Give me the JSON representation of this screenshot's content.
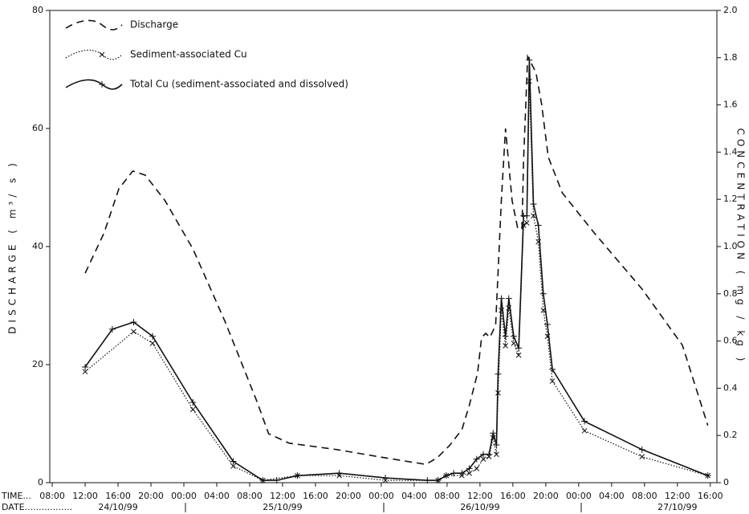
{
  "chart_data": {
    "type": "line",
    "y_axis_label": "DISCHARGE ( m³/ s )",
    "y2_axis_label": "CONCENTRATION ( mg / kg )",
    "time_label": "TIME...",
    "date_label": "DATE.................",
    "xlim": [
      7.7,
      88.8
    ],
    "xticks": [
      {
        "value": 8,
        "label": "08:00"
      },
      {
        "value": 12,
        "label": "12:00"
      },
      {
        "value": 16,
        "label": "16:00"
      },
      {
        "value": 20,
        "label": "20:00"
      },
      {
        "value": 24,
        "label": "00:00"
      },
      {
        "value": 28,
        "label": "04:00"
      },
      {
        "value": 32,
        "label": "08:00"
      },
      {
        "value": 36,
        "label": "12:00"
      },
      {
        "value": 40,
        "label": "16:00"
      },
      {
        "value": 44,
        "label": "20:00"
      },
      {
        "value": 48,
        "label": "00:00"
      },
      {
        "value": 52,
        "label": "04:00"
      },
      {
        "value": 56,
        "label": "08:00"
      },
      {
        "value": 60,
        "label": "12:00"
      },
      {
        "value": 64,
        "label": "16:00"
      },
      {
        "value": 68,
        "label": "20:00"
      },
      {
        "value": 72,
        "label": "00:00"
      },
      {
        "value": 76,
        "label": "04:00"
      },
      {
        "value": 80,
        "label": "08:00"
      },
      {
        "value": 84,
        "label": "12:00"
      },
      {
        "value": 88,
        "label": "16:00"
      }
    ],
    "date_labels": [
      {
        "value": 16,
        "label": "24/10/99"
      },
      {
        "value": 36,
        "label": "25/10/99"
      },
      {
        "value": 60,
        "label": "26/10/99"
      },
      {
        "value": 84,
        "label": "27/10/99"
      }
    ],
    "ylim": [
      0,
      80
    ],
    "yticks": [
      0,
      20,
      40,
      60,
      80
    ],
    "y2lim": [
      0,
      2.0
    ],
    "y2ticks": [
      0,
      0.2,
      0.4,
      0.6,
      0.8,
      {
        "value": 1.0,
        "label": "1.0"
      },
      1.2,
      1.4,
      1.6,
      1.8,
      {
        "value": 2.0,
        "label": "2.0"
      }
    ],
    "grid": false,
    "legend": "upper left",
    "series": [
      {
        "name": "Discharge",
        "color": "#111111",
        "dash": "dashed",
        "marker": "none",
        "axis": "y",
        "x": [
          12,
          14.3,
          16.1,
          17.8,
          19.3,
          21.7,
          25.1,
          29,
          32.9,
          34.3,
          36.8,
          42.6,
          48.5,
          53.4,
          54.8,
          56.3,
          57.8,
          58.7,
          59.7,
          60.2,
          60.7,
          61.2,
          61.9,
          62.6,
          63.1,
          63.9,
          64.6,
          65.1,
          65.3,
          65.8,
          66.8,
          67.5,
          68.3,
          70,
          73.9,
          79.7,
          84.6,
          87.7
        ],
        "values": [
          35.5,
          42.3,
          49.8,
          52.8,
          52.1,
          47.8,
          39.6,
          27.3,
          13.7,
          8.3,
          6.7,
          5.6,
          4.2,
          3.1,
          4.2,
          6.3,
          9.0,
          13.1,
          18.5,
          24.6,
          25.3,
          24.6,
          26.7,
          47.8,
          60,
          47.8,
          43,
          43,
          54.6,
          72.2,
          69.5,
          64.1,
          55.2,
          49.1,
          42.3,
          32.8,
          23.3,
          9.7
        ]
      },
      {
        "name": "Sediment-associated Cu",
        "color": "#111111",
        "dash": "dotted",
        "marker": "x",
        "axis": "y2",
        "x": [
          12,
          17.9,
          20.2,
          25.1,
          30,
          33.6,
          37.8,
          42.9,
          48.5,
          54.9,
          55.9,
          57.8,
          58.7,
          59.6,
          60.4,
          61.1,
          61.6,
          62,
          62.2,
          62.6,
          63.1,
          63.5,
          64.1,
          64.7,
          65.3,
          65.7,
          66.0,
          66.5,
          67.1,
          67.7,
          68.2,
          68.8,
          72.7,
          79.7,
          87.7
        ],
        "values": [
          0.47,
          0.64,
          0.59,
          0.31,
          0.07,
          0.01,
          0.03,
          0.03,
          0.01,
          0.01,
          0.03,
          0.03,
          0.04,
          0.06,
          0.1,
          0.11,
          0.19,
          0.12,
          0.38,
          0.73,
          0.58,
          0.74,
          0.59,
          0.54,
          1.09,
          1.1,
          1.7,
          1.13,
          1.02,
          0.73,
          0.62,
          0.43,
          0.22,
          0.11,
          0.03
        ]
      },
      {
        "name": "Total Cu (sediment-associated and dissolved)",
        "color": "#111111",
        "dash": "solid",
        "marker": "+",
        "axis": "y2",
        "x": [
          12,
          15.3,
          17.9,
          20.2,
          25.1,
          30,
          33.6,
          35.3,
          37.8,
          42.9,
          48.5,
          53.6,
          54.9,
          55.9,
          56.8,
          57.8,
          58.7,
          59.6,
          60.4,
          61.1,
          61.6,
          62,
          62.2,
          62.6,
          63.1,
          63.5,
          64.1,
          64.7,
          65.3,
          65.7,
          66.0,
          66.5,
          67.1,
          67.7,
          68.2,
          68.8,
          72.7,
          79.7,
          87.7
        ],
        "values": [
          0.49,
          0.65,
          0.68,
          0.62,
          0.34,
          0.09,
          0.01,
          0.01,
          0.03,
          0.04,
          0.02,
          0.01,
          0.01,
          0.03,
          0.04,
          0.04,
          0.06,
          0.1,
          0.12,
          0.12,
          0.21,
          0.16,
          0.46,
          0.78,
          0.62,
          0.78,
          0.62,
          0.57,
          1.13,
          1.13,
          1.79,
          1.18,
          1.09,
          0.8,
          0.67,
          0.48,
          0.26,
          0.14,
          0.03
        ]
      }
    ]
  }
}
